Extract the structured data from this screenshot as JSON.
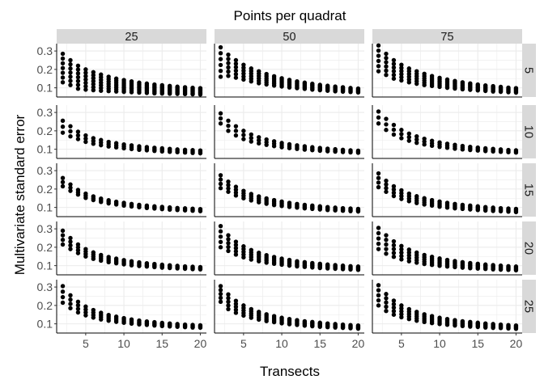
{
  "chart_data": {
    "type": "scatter",
    "title": "Points per quadrat",
    "xlabel": "Transects",
    "ylabel": "Multivariate standard error",
    "col_facet_labels": [
      "25",
      "50",
      "75"
    ],
    "row_facet_labels": [
      "5",
      "10",
      "15",
      "20",
      "25"
    ],
    "x_ticks": [
      5,
      10,
      15,
      20
    ],
    "y_ticks": [
      0.1,
      0.2,
      0.3
    ],
    "xlim": [
      1.2,
      20.8
    ],
    "ylim": [
      0.05,
      0.34
    ],
    "x_values": [
      2,
      3,
      4,
      5,
      6,
      7,
      8,
      9,
      10,
      11,
      12,
      13,
      14,
      15,
      16,
      17,
      18,
      19,
      20
    ],
    "grid": true,
    "legend": "none",
    "colors": {
      "point": "#000000",
      "strip_bg": "#d9d9d9",
      "panel_bg": "#ffffff",
      "grid": "#ebebeb",
      "axis": "#000000"
    },
    "panels": [
      {
        "row": "5",
        "col": "25",
        "min": [
          0.13,
          0.115,
          0.095,
          0.09,
          0.087,
          0.084,
          0.082,
          0.08,
          0.078,
          0.076,
          0.074,
          0.072,
          0.07,
          0.069,
          0.068,
          0.067,
          0.066,
          0.065,
          0.064
        ],
        "max": [
          0.285,
          0.25,
          0.22,
          0.2,
          0.185,
          0.172,
          0.16,
          0.15,
          0.142,
          0.135,
          0.128,
          0.123,
          0.118,
          0.114,
          0.11,
          0.106,
          0.103,
          0.1,
          0.098
        ],
        "n": 7
      },
      {
        "row": "5",
        "col": "50",
        "min": [
          0.16,
          0.165,
          0.155,
          0.145,
          0.135,
          0.125,
          0.118,
          0.112,
          0.107,
          0.102,
          0.098,
          0.094,
          0.09,
          0.087,
          0.084,
          0.081,
          0.079,
          0.077,
          0.075
        ],
        "max": [
          0.32,
          0.28,
          0.25,
          0.225,
          0.205,
          0.19,
          0.175,
          0.163,
          0.152,
          0.143,
          0.135,
          0.128,
          0.122,
          0.116,
          0.111,
          0.107,
          0.103,
          0.099,
          0.096
        ],
        "n": 6
      },
      {
        "row": "5",
        "col": "75",
        "min": [
          0.19,
          0.17,
          0.15,
          0.14,
          0.13,
          0.122,
          0.115,
          0.11,
          0.105,
          0.1,
          0.096,
          0.092,
          0.089,
          0.086,
          0.083,
          0.08,
          0.078,
          0.076,
          0.074
        ],
        "max": [
          0.33,
          0.285,
          0.25,
          0.225,
          0.205,
          0.19,
          0.176,
          0.164,
          0.154,
          0.145,
          0.137,
          0.13,
          0.124,
          0.118,
          0.113,
          0.109,
          0.105,
          0.101,
          0.098
        ],
        "n": 6
      },
      {
        "row": "10",
        "col": "25",
        "min": [
          0.19,
          0.17,
          0.155,
          0.14,
          0.13,
          0.122,
          0.115,
          0.11,
          0.105,
          0.101,
          0.097,
          0.094,
          0.091,
          0.088,
          0.086,
          0.084,
          0.082,
          0.08,
          0.078
        ],
        "max": [
          0.255,
          0.225,
          0.195,
          0.175,
          0.16,
          0.15,
          0.14,
          0.133,
          0.126,
          0.121,
          0.116,
          0.112,
          0.108,
          0.105,
          0.102,
          0.099,
          0.097,
          0.095,
          0.093
        ],
        "n": 3
      },
      {
        "row": "10",
        "col": "50",
        "min": [
          0.24,
          0.2,
          0.175,
          0.155,
          0.142,
          0.132,
          0.124,
          0.117,
          0.111,
          0.106,
          0.102,
          0.098,
          0.095,
          0.092,
          0.089,
          0.087,
          0.085,
          0.083,
          0.081
        ],
        "max": [
          0.295,
          0.255,
          0.225,
          0.2,
          0.18,
          0.165,
          0.153,
          0.143,
          0.134,
          0.127,
          0.121,
          0.116,
          0.111,
          0.107,
          0.103,
          0.1,
          0.097,
          0.094,
          0.092
        ],
        "n": 3
      },
      {
        "row": "10",
        "col": "75",
        "min": [
          0.24,
          0.205,
          0.18,
          0.16,
          0.146,
          0.135,
          0.126,
          0.119,
          0.113,
          0.108,
          0.103,
          0.099,
          0.096,
          0.093,
          0.09,
          0.088,
          0.086,
          0.084,
          0.082
        ],
        "max": [
          0.305,
          0.265,
          0.232,
          0.205,
          0.185,
          0.17,
          0.157,
          0.146,
          0.137,
          0.13,
          0.124,
          0.118,
          0.113,
          0.109,
          0.105,
          0.102,
          0.099,
          0.096,
          0.094
        ],
        "n": 3
      },
      {
        "row": "15",
        "col": "25",
        "min": [
          0.215,
          0.19,
          0.17,
          0.152,
          0.14,
          0.13,
          0.122,
          0.116,
          0.11,
          0.105,
          0.101,
          0.097,
          0.094,
          0.091,
          0.088,
          0.086,
          0.084,
          0.082,
          0.08
        ],
        "max": [
          0.26,
          0.225,
          0.195,
          0.175,
          0.16,
          0.148,
          0.139,
          0.131,
          0.125,
          0.119,
          0.114,
          0.11,
          0.106,
          0.103,
          0.1,
          0.097,
          0.095,
          0.093,
          0.091
        ],
        "n": 3
      },
      {
        "row": "15",
        "col": "50",
        "min": [
          0.205,
          0.185,
          0.165,
          0.15,
          0.138,
          0.128,
          0.12,
          0.113,
          0.108,
          0.103,
          0.099,
          0.095,
          0.092,
          0.089,
          0.086,
          0.084,
          0.082,
          0.08,
          0.078
        ],
        "max": [
          0.275,
          0.24,
          0.212,
          0.19,
          0.173,
          0.16,
          0.149,
          0.14,
          0.132,
          0.125,
          0.119,
          0.114,
          0.11,
          0.106,
          0.102,
          0.099,
          0.096,
          0.094,
          0.092
        ],
        "n": 4
      },
      {
        "row": "15",
        "col": "75",
        "min": [
          0.21,
          0.185,
          0.162,
          0.146,
          0.134,
          0.124,
          0.116,
          0.11,
          0.104,
          0.099,
          0.095,
          0.092,
          0.089,
          0.086,
          0.083,
          0.081,
          0.079,
          0.077,
          0.075
        ],
        "max": [
          0.285,
          0.245,
          0.215,
          0.193,
          0.175,
          0.161,
          0.15,
          0.14,
          0.132,
          0.125,
          0.119,
          0.114,
          0.11,
          0.106,
          0.102,
          0.099,
          0.096,
          0.094,
          0.092
        ],
        "n": 4
      },
      {
        "row": "20",
        "col": "25",
        "min": [
          0.215,
          0.19,
          0.168,
          0.15,
          0.137,
          0.127,
          0.119,
          0.113,
          0.107,
          0.102,
          0.098,
          0.095,
          0.092,
          0.089,
          0.087,
          0.085,
          0.083,
          0.081,
          0.08
        ],
        "max": [
          0.29,
          0.25,
          0.215,
          0.19,
          0.172,
          0.158,
          0.147,
          0.138,
          0.13,
          0.124,
          0.118,
          0.113,
          0.109,
          0.105,
          0.102,
          0.099,
          0.096,
          0.094,
          0.092
        ],
        "n": 4
      },
      {
        "row": "20",
        "col": "50",
        "min": [
          0.2,
          0.18,
          0.16,
          0.145,
          0.133,
          0.124,
          0.116,
          0.11,
          0.105,
          0.1,
          0.096,
          0.093,
          0.09,
          0.087,
          0.085,
          0.083,
          0.081,
          0.079,
          0.077
        ],
        "max": [
          0.315,
          0.265,
          0.23,
          0.205,
          0.185,
          0.17,
          0.157,
          0.147,
          0.138,
          0.131,
          0.124,
          0.119,
          0.114,
          0.11,
          0.106,
          0.103,
          0.1,
          0.097,
          0.095
        ],
        "n": 5
      },
      {
        "row": "20",
        "col": "75",
        "min": [
          0.19,
          0.165,
          0.148,
          0.134,
          0.124,
          0.116,
          0.109,
          0.104,
          0.099,
          0.095,
          0.092,
          0.089,
          0.086,
          0.084,
          0.082,
          0.08,
          0.078,
          0.077,
          0.075
        ],
        "max": [
          0.305,
          0.265,
          0.232,
          0.207,
          0.187,
          0.171,
          0.158,
          0.148,
          0.139,
          0.131,
          0.125,
          0.119,
          0.114,
          0.11,
          0.106,
          0.103,
          0.1,
          0.097,
          0.095
        ],
        "n": 5
      },
      {
        "row": "25",
        "col": "25",
        "min": [
          0.215,
          0.185,
          0.162,
          0.146,
          0.134,
          0.124,
          0.117,
          0.111,
          0.106,
          0.101,
          0.097,
          0.094,
          0.091,
          0.088,
          0.086,
          0.084,
          0.082,
          0.08,
          0.079
        ],
        "max": [
          0.305,
          0.255,
          0.22,
          0.194,
          0.175,
          0.16,
          0.148,
          0.139,
          0.131,
          0.124,
          0.118,
          0.113,
          0.109,
          0.105,
          0.102,
          0.099,
          0.096,
          0.094,
          0.092
        ],
        "n": 4
      },
      {
        "row": "25",
        "col": "50",
        "min": [
          0.22,
          0.18,
          0.16,
          0.145,
          0.133,
          0.123,
          0.115,
          0.109,
          0.103,
          0.098,
          0.094,
          0.09,
          0.087,
          0.084,
          0.082,
          0.08,
          0.078,
          0.076,
          0.074
        ],
        "max": [
          0.305,
          0.26,
          0.225,
          0.2,
          0.18,
          0.165,
          0.152,
          0.142,
          0.133,
          0.126,
          0.12,
          0.114,
          0.11,
          0.106,
          0.102,
          0.099,
          0.096,
          0.093,
          0.091
        ],
        "n": 5
      },
      {
        "row": "25",
        "col": "75",
        "min": [
          0.2,
          0.17,
          0.15,
          0.136,
          0.126,
          0.117,
          0.11,
          0.104,
          0.099,
          0.095,
          0.091,
          0.088,
          0.085,
          0.083,
          0.08,
          0.078,
          0.077,
          0.075,
          0.073
        ],
        "max": [
          0.31,
          0.262,
          0.226,
          0.2,
          0.18,
          0.165,
          0.152,
          0.142,
          0.133,
          0.126,
          0.12,
          0.114,
          0.11,
          0.106,
          0.102,
          0.099,
          0.096,
          0.093,
          0.091
        ],
        "n": 5
      }
    ]
  }
}
